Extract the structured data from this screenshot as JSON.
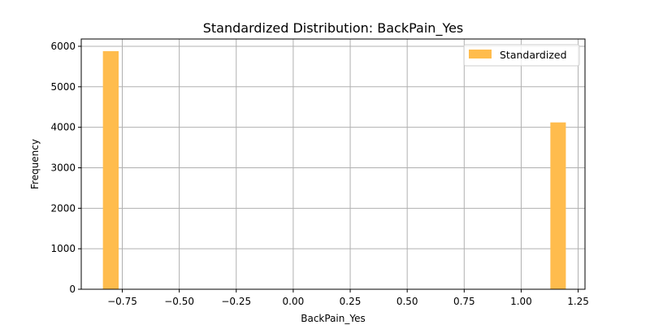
{
  "chart_data": {
    "type": "bar",
    "title": "Standardized Distribution: BackPain_Yes",
    "xlabel": "BackPain_Yes",
    "ylabel": "Frequency",
    "xlim": [
      -0.93,
      1.28
    ],
    "ylim": [
      0,
      6180
    ],
    "xticks": [
      -0.75,
      -0.5,
      -0.25,
      0.0,
      0.25,
      0.5,
      0.75,
      1.0,
      1.25
    ],
    "xtick_labels": [
      "−0.75",
      "−0.50",
      "−0.25",
      "0.00",
      "0.25",
      "0.50",
      "0.75",
      "1.00",
      "1.25"
    ],
    "yticks": [
      0,
      1000,
      2000,
      3000,
      4000,
      5000,
      6000
    ],
    "ytick_labels": [
      "0",
      "1000",
      "2000",
      "3000",
      "4000",
      "5000",
      "6000"
    ],
    "series": [
      {
        "name": "Standardized",
        "bins": [
          {
            "x0": -0.835,
            "x1": -0.766,
            "value": 5880
          },
          {
            "x0": 1.128,
            "x1": 1.196,
            "value": 4120
          }
        ]
      }
    ],
    "grid": true,
    "legend_position": "top-right",
    "bar_color": "#ffbc4d"
  }
}
